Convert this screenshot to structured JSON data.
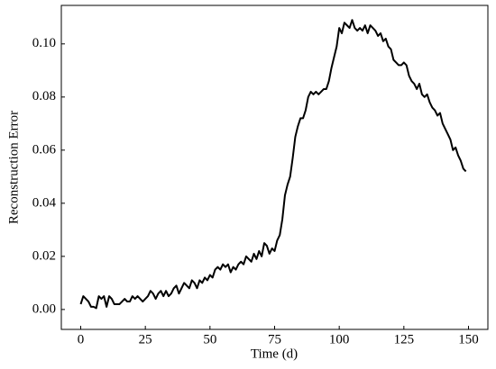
{
  "chart_data": {
    "type": "line",
    "xlabel": "Time (d)",
    "ylabel": "Reconstruction Error",
    "x": [
      0,
      1,
      2,
      3,
      4,
      5,
      6,
      7,
      8,
      9,
      10,
      11,
      12,
      13,
      14,
      15,
      16,
      17,
      18,
      19,
      20,
      21,
      22,
      23,
      24,
      25,
      26,
      27,
      28,
      29,
      30,
      31,
      32,
      33,
      34,
      35,
      36,
      37,
      38,
      39,
      40,
      41,
      42,
      43,
      44,
      45,
      46,
      47,
      48,
      49,
      50,
      51,
      52,
      53,
      54,
      55,
      56,
      57,
      58,
      59,
      60,
      61,
      62,
      63,
      64,
      65,
      66,
      67,
      68,
      69,
      70,
      71,
      72,
      73,
      74,
      75,
      76,
      77,
      78,
      79,
      80,
      81,
      82,
      83,
      84,
      85,
      86,
      87,
      88,
      89,
      90,
      91,
      92,
      93,
      94,
      95,
      96,
      97,
      98,
      99,
      100,
      101,
      102,
      103,
      104,
      105,
      106,
      107,
      108,
      109,
      110,
      111,
      112,
      113,
      114,
      115,
      116,
      117,
      118,
      119,
      120,
      121,
      122,
      123,
      124,
      125,
      126,
      127,
      128,
      129,
      130,
      131,
      132,
      133,
      134,
      135,
      136,
      137,
      138,
      139,
      140,
      141,
      142,
      143,
      144,
      145,
      146,
      147,
      148,
      149
    ],
    "series": [
      {
        "color": "#000000",
        "values": [
          0.002,
          0.005,
          0.004,
          0.003,
          0.001,
          0.001,
          0.0005,
          0.005,
          0.004,
          0.005,
          0.001,
          0.005,
          0.004,
          0.002,
          0.002,
          0.002,
          0.003,
          0.004,
          0.003,
          0.003,
          0.005,
          0.004,
          0.005,
          0.004,
          0.003,
          0.004,
          0.005,
          0.007,
          0.006,
          0.004,
          0.006,
          0.007,
          0.005,
          0.007,
          0.005,
          0.006,
          0.008,
          0.009,
          0.006,
          0.008,
          0.01,
          0.009,
          0.008,
          0.011,
          0.01,
          0.008,
          0.011,
          0.01,
          0.012,
          0.011,
          0.013,
          0.012,
          0.015,
          0.016,
          0.015,
          0.017,
          0.016,
          0.017,
          0.014,
          0.016,
          0.015,
          0.017,
          0.018,
          0.017,
          0.02,
          0.019,
          0.018,
          0.021,
          0.019,
          0.022,
          0.02,
          0.025,
          0.024,
          0.021,
          0.023,
          0.022,
          0.026,
          0.028,
          0.034,
          0.043,
          0.047,
          0.05,
          0.057,
          0.065,
          0.069,
          0.072,
          0.072,
          0.075,
          0.08,
          0.082,
          0.081,
          0.082,
          0.081,
          0.082,
          0.083,
          0.083,
          0.086,
          0.091,
          0.095,
          0.099,
          0.106,
          0.104,
          0.108,
          0.107,
          0.106,
          0.109,
          0.106,
          0.105,
          0.106,
          0.105,
          0.107,
          0.104,
          0.107,
          0.106,
          0.105,
          0.103,
          0.104,
          0.101,
          0.102,
          0.099,
          0.098,
          0.094,
          0.093,
          0.092,
          0.092,
          0.093,
          0.092,
          0.088,
          0.086,
          0.085,
          0.083,
          0.085,
          0.081,
          0.08,
          0.081,
          0.078,
          0.076,
          0.075,
          0.073,
          0.074,
          0.07,
          0.068,
          0.066,
          0.064,
          0.06,
          0.061,
          0.058,
          0.056,
          0.053,
          0.052
        ]
      }
    ],
    "xlim": [
      -7.5,
      157.5
    ],
    "xticks": [
      0,
      25,
      50,
      75,
      100,
      125,
      150
    ],
    "ylim": [
      -0.0075,
      0.1145
    ],
    "yticks": [
      {
        "value": 0,
        "label": "0.00"
      },
      {
        "value": 0.02,
        "label": "0.02"
      },
      {
        "value": 0.04,
        "label": "0.04"
      },
      {
        "value": 0.06,
        "label": "0.06"
      },
      {
        "value": 0.08,
        "label": "0.08"
      },
      {
        "value": 0.1,
        "label": "0.10"
      }
    ],
    "grid": false
  }
}
